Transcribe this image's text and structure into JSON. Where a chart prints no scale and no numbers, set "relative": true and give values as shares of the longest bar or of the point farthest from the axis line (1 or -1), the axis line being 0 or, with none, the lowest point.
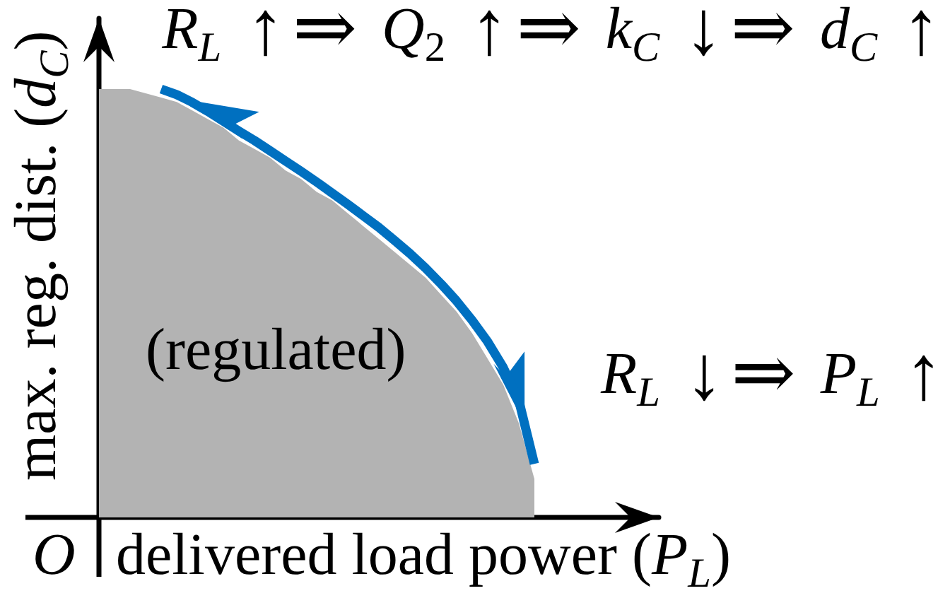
{
  "chart_data": {
    "type": "area",
    "xlabel": "delivered load power (P$_{L}$)",
    "ylabel": "max. reg. dist. (d$_{C}$)",
    "annotations": [
      "R$_{L}$ ↑⇒ Q$_{2}$ ↑⇒ k$_{C}$ ↓⇒ d$_{C}$ ↑",
      "R$_{L}$ ↓⇒ P$_{L}$ ↑",
      "(regulated)",
      "O"
    ],
    "categories": [
      null,
      null,
      null,
      null,
      null,
      null,
      null,
      null,
      null,
      null,
      null,
      null,
      null,
      null,
      null,
      null,
      null,
      null,
      null,
      null,
      null,
      null,
      null,
      null,
      null,
      null,
      null,
      null,
      null,
      null,
      null,
      null,
      null,
      null,
      null,
      null,
      null
    ],
    "series": [
      {
        "color": "#b3b3b3",
        "values": [
          1.0,
          1.0,
          1.0,
          0.99,
          0.98,
          0.97,
          0.95,
          0.93,
          0.91,
          0.88,
          0.86,
          0.84,
          0.81,
          0.79,
          0.76,
          0.74,
          0.71,
          0.68,
          0.65,
          0.62,
          0.59,
          0.56,
          0.52,
          0.48,
          0.43,
          0.37,
          0.31,
          0.22,
          0.09,
          null,
          null,
          null,
          null,
          null,
          null,
          null,
          null
        ]
      },
      {
        "type": "line",
        "color": "#0070c0",
        "values": [
          null,
          null,
          null,
          null,
          1.0,
          0.987,
          0.969,
          0.948,
          0.925,
          0.902,
          0.88,
          0.856,
          0.832,
          0.808,
          0.783,
          0.757,
          0.731,
          0.704,
          0.677,
          0.647,
          0.616,
          0.582,
          0.545,
          0.505,
          0.46,
          0.41,
          0.35,
          0.273,
          0.125,
          null,
          null,
          null,
          null,
          null,
          null,
          null,
          null
        ]
      }
    ],
    "relative": true
  }
}
